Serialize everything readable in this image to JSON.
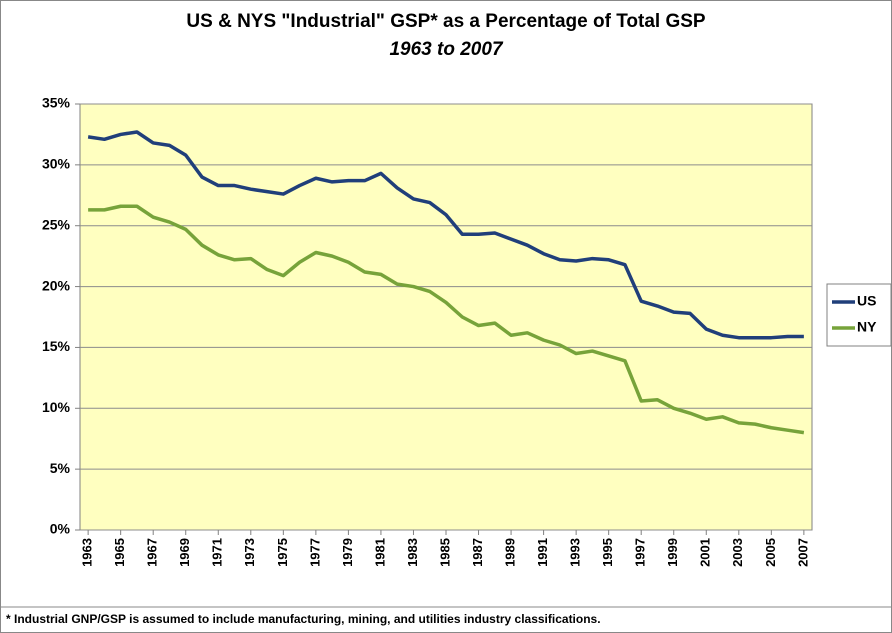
{
  "chart_data": {
    "type": "line",
    "title": "US & NYS \"Industrial\" GSP* as a Percentage of Total GSP",
    "subtitle": "1963 to 2007",
    "footnote": "* Industrial GNP/GSP is assumed to include manufacturing, mining, and utilities industry classifications.",
    "x": [
      1963,
      1964,
      1965,
      1966,
      1967,
      1968,
      1969,
      1970,
      1971,
      1972,
      1973,
      1974,
      1975,
      1976,
      1977,
      1978,
      1979,
      1980,
      1981,
      1982,
      1983,
      1984,
      1985,
      1986,
      1987,
      1988,
      1989,
      1990,
      1991,
      1992,
      1993,
      1994,
      1995,
      1996,
      1997,
      1998,
      1999,
      2000,
      2001,
      2002,
      2003,
      2004,
      2005,
      2006,
      2007
    ],
    "xlim": [
      1962.5,
      2007.5
    ],
    "xticks": [
      1963,
      1965,
      1967,
      1969,
      1971,
      1973,
      1975,
      1977,
      1979,
      1981,
      1983,
      1985,
      1987,
      1989,
      1991,
      1993,
      1995,
      1997,
      1999,
      2001,
      2003,
      2005,
      2007
    ],
    "ylim": [
      0,
      35
    ],
    "yticks": [
      {
        "value": 0,
        "label": "0%"
      },
      {
        "value": 5,
        "label": "5%"
      },
      {
        "value": 10,
        "label": "10%"
      },
      {
        "value": 15,
        "label": "15%"
      },
      {
        "value": 20,
        "label": "20%"
      },
      {
        "value": 25,
        "label": "25%"
      },
      {
        "value": 30,
        "label": "30%"
      },
      {
        "value": 35,
        "label": "35%"
      }
    ],
    "grid": true,
    "legend": "right",
    "series": [
      {
        "name": "US",
        "color": "#203f7a",
        "values": [
          32.3,
          32.1,
          32.5,
          32.7,
          31.8,
          31.6,
          30.8,
          29.0,
          28.3,
          28.3,
          28.0,
          27.8,
          27.6,
          28.3,
          28.9,
          28.6,
          28.7,
          28.7,
          29.3,
          28.1,
          27.2,
          26.9,
          25.9,
          24.3,
          24.3,
          24.4,
          23.9,
          23.4,
          22.7,
          22.2,
          22.1,
          22.3,
          22.2,
          21.8,
          18.8,
          18.4,
          17.9,
          17.8,
          16.5,
          16.0,
          15.8,
          15.8,
          15.8,
          15.9,
          15.9
        ]
      },
      {
        "name": "NY",
        "color": "#77a33a",
        "values": [
          26.3,
          26.3,
          26.6,
          26.6,
          25.7,
          25.3,
          24.7,
          23.4,
          22.6,
          22.2,
          22.3,
          21.4,
          20.9,
          22.0,
          22.8,
          22.5,
          22.0,
          21.2,
          21.0,
          20.2,
          20.0,
          19.6,
          18.7,
          17.5,
          16.8,
          17.0,
          16.0,
          16.2,
          15.6,
          15.2,
          14.5,
          14.7,
          14.3,
          13.9,
          10.6,
          10.7,
          10.0,
          9.6,
          9.1,
          9.3,
          8.8,
          8.7,
          8.4,
          8.2,
          8.0
        ]
      }
    ]
  }
}
